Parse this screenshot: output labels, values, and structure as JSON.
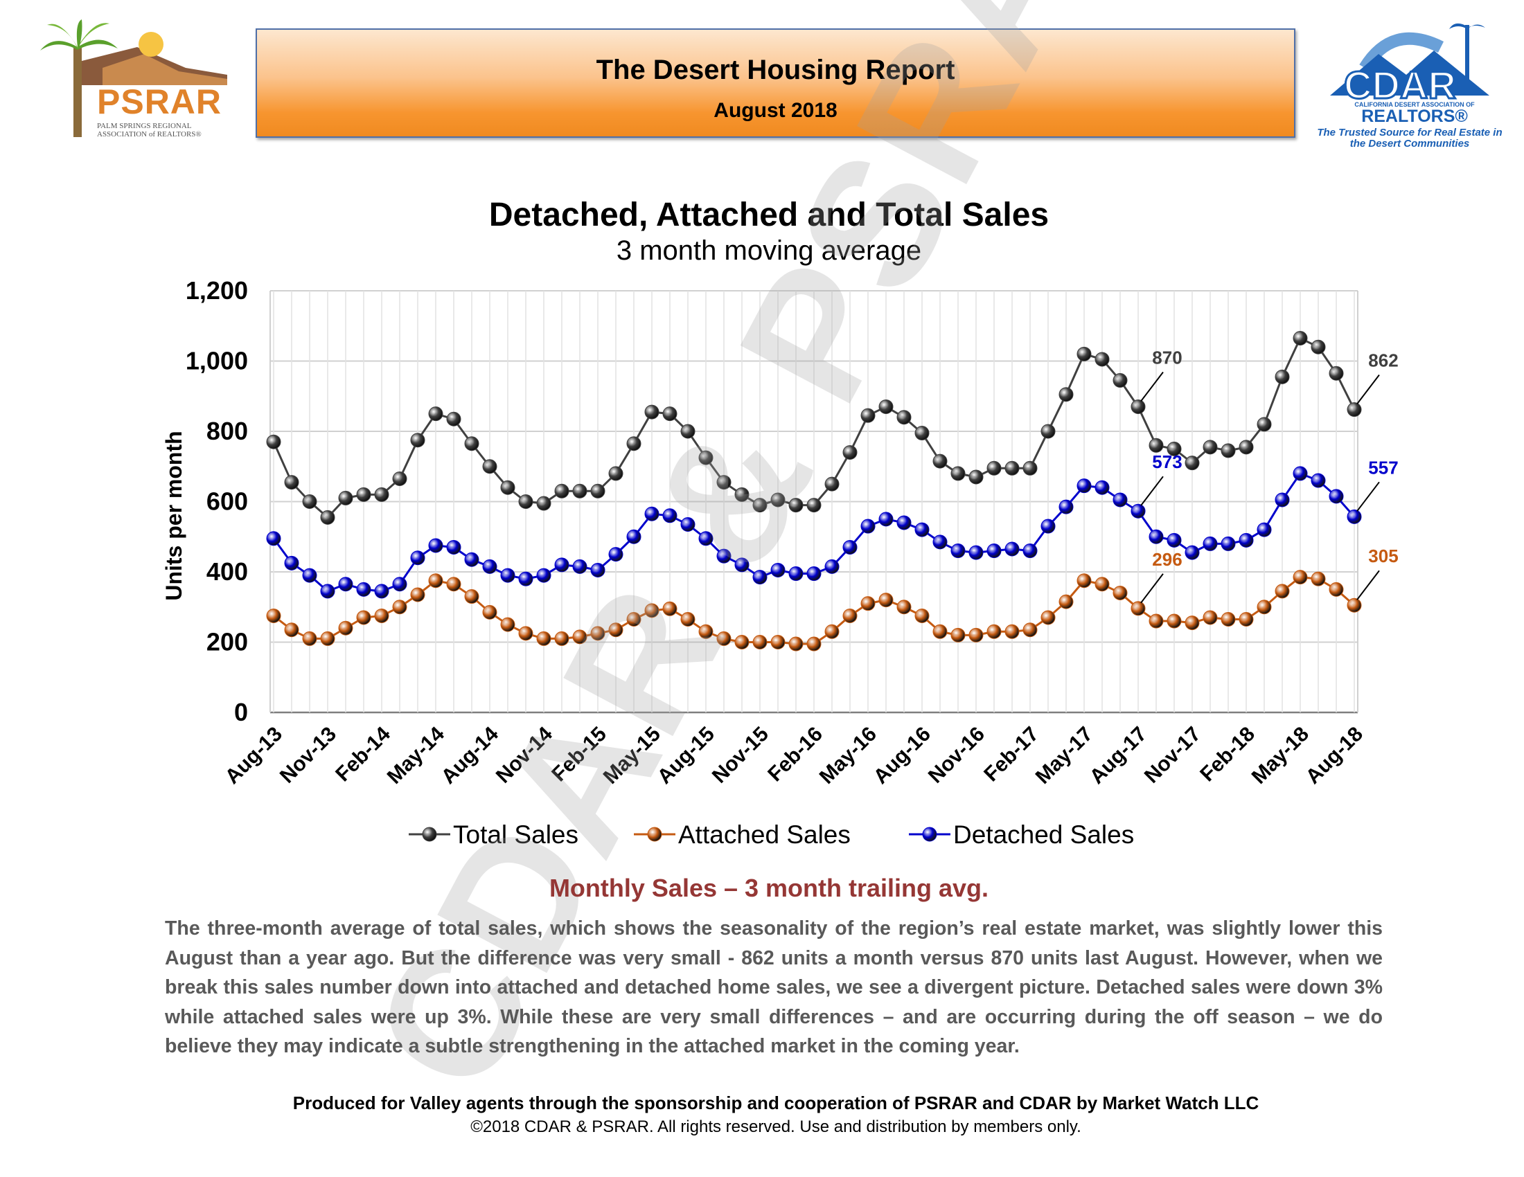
{
  "header": {
    "title": "The Desert Housing Report",
    "subtitle": "August 2018"
  },
  "logos": {
    "left_word": "PSRAR",
    "left_tagline": "PALM SPRINGS REGIONAL ASSOCIATION of REALTORS®",
    "right_word": "CDAR",
    "right_assoc": "CALIFORNIA DESERT ASSOCIATION OF",
    "right_realtors": "REALTORS®",
    "right_slogan": "The Trusted Source for Real Estate in the Desert Communities"
  },
  "watermark": "CDAR & PSRAR",
  "chart_data": {
    "type": "line",
    "title": "Detached, Attached and Total Sales",
    "subtitle": "3 month moving average",
    "ylabel": "Units per month",
    "xlabel": "",
    "ylim": [
      0,
      1200
    ],
    "yticks": [
      0,
      200,
      400,
      600,
      800,
      1000,
      1200
    ],
    "ytick_labels": [
      "0",
      "200",
      "400",
      "600",
      "800",
      "1,000",
      "1,200"
    ],
    "grid": true,
    "legend_position": "bottom",
    "x": [
      "Aug-13",
      "Sep-13",
      "Oct-13",
      "Nov-13",
      "Dec-13",
      "Jan-14",
      "Feb-14",
      "Mar-14",
      "Apr-14",
      "May-14",
      "Jun-14",
      "Jul-14",
      "Aug-14",
      "Sep-14",
      "Oct-14",
      "Nov-14",
      "Dec-14",
      "Jan-15",
      "Feb-15",
      "Mar-15",
      "Apr-15",
      "May-15",
      "Jun-15",
      "Jul-15",
      "Aug-15",
      "Sep-15",
      "Oct-15",
      "Nov-15",
      "Dec-15",
      "Jan-16",
      "Feb-16",
      "Mar-16",
      "Apr-16",
      "May-16",
      "Jun-16",
      "Jul-16",
      "Aug-16",
      "Sep-16",
      "Oct-16",
      "Nov-16",
      "Dec-16",
      "Jan-17",
      "Feb-17",
      "Mar-17",
      "Apr-17",
      "May-17",
      "Jun-17",
      "Jul-17",
      "Aug-17",
      "Sep-17",
      "Oct-17",
      "Nov-17",
      "Dec-17",
      "Jan-18",
      "Feb-18",
      "Mar-18",
      "Apr-18",
      "May-18",
      "Jun-18",
      "Jul-18",
      "Aug-18"
    ],
    "x_tick_labels": [
      "Aug-13",
      "Nov-13",
      "Feb-14",
      "May-14",
      "Aug-14",
      "Nov-14",
      "Feb-15",
      "May-15",
      "Aug-15",
      "Nov-15",
      "Feb-16",
      "May-16",
      "Aug-16",
      "Nov-16",
      "Feb-17",
      "May-17",
      "Aug-17",
      "Nov-17",
      "Feb-18",
      "May-18",
      "Aug-18"
    ],
    "series": [
      {
        "name": "Total Sales",
        "color": "#404040",
        "values": [
          770,
          655,
          600,
          555,
          610,
          620,
          620,
          665,
          775,
          850,
          835,
          765,
          700,
          640,
          600,
          595,
          630,
          630,
          630,
          680,
          765,
          855,
          850,
          800,
          725,
          655,
          620,
          590,
          605,
          590,
          590,
          650,
          740,
          845,
          870,
          840,
          795,
          715,
          680,
          670,
          695,
          695,
          695,
          800,
          905,
          1020,
          1005,
          945,
          870,
          760,
          750,
          710,
          755,
          745,
          755,
          820,
          955,
          1065,
          1040,
          965,
          862
        ]
      },
      {
        "name": "Attached Sales",
        "color": "#c55a11",
        "values": [
          275,
          235,
          210,
          210,
          240,
          270,
          275,
          300,
          335,
          375,
          365,
          330,
          285,
          250,
          225,
          210,
          210,
          215,
          225,
          235,
          265,
          290,
          295,
          265,
          230,
          210,
          200,
          200,
          200,
          195,
          195,
          230,
          275,
          310,
          320,
          300,
          275,
          230,
          220,
          220,
          230,
          230,
          235,
          270,
          315,
          375,
          365,
          340,
          296,
          260,
          260,
          255,
          270,
          265,
          265,
          300,
          345,
          385,
          380,
          350,
          305
        ]
      },
      {
        "name": "Detached Sales",
        "color": "#0000cc",
        "values": [
          495,
          425,
          390,
          345,
          365,
          350,
          345,
          365,
          440,
          475,
          470,
          435,
          415,
          390,
          380,
          390,
          420,
          415,
          405,
          450,
          500,
          565,
          560,
          535,
          495,
          445,
          420,
          385,
          405,
          395,
          395,
          415,
          470,
          530,
          550,
          540,
          520,
          485,
          460,
          455,
          460,
          465,
          460,
          530,
          585,
          645,
          640,
          605,
          573,
          500,
          490,
          455,
          480,
          480,
          490,
          520,
          605,
          680,
          660,
          615,
          557
        ]
      }
    ],
    "annotations": [
      {
        "series": "Total Sales",
        "x": "Aug-17",
        "label": "870"
      },
      {
        "series": "Total Sales",
        "x": "Aug-18",
        "label": "862"
      },
      {
        "series": "Detached Sales",
        "x": "Aug-17",
        "label": "573"
      },
      {
        "series": "Detached Sales",
        "x": "Aug-18",
        "label": "557"
      },
      {
        "series": "Attached Sales",
        "x": "Aug-17",
        "label": "296"
      },
      {
        "series": "Attached Sales",
        "x": "Aug-18",
        "label": "305"
      }
    ]
  },
  "caption": "Monthly Sales – 3 month trailing avg.",
  "paragraph": "The three-month average of total sales, which shows the seasonality of the region’s real estate market, was slightly lower this August than a year ago. But the difference was very small - 862 units a month versus 870 units last August. However, when we break this sales number down into attached and detached home sales, we see a divergent picture. Detached sales were down 3% while attached sales were up 3%. While these are very small differences – and are occurring during the off season – we do believe they may indicate a subtle strengthening in the attached market in the coming year.",
  "footer": {
    "credit": "Produced for Valley agents through the sponsorship and cooperation of PSRAR and CDAR by Market Watch LLC",
    "copyright": "©2018 CDAR & PSRAR.  All rights reserved.  Use and distribution by members only."
  }
}
